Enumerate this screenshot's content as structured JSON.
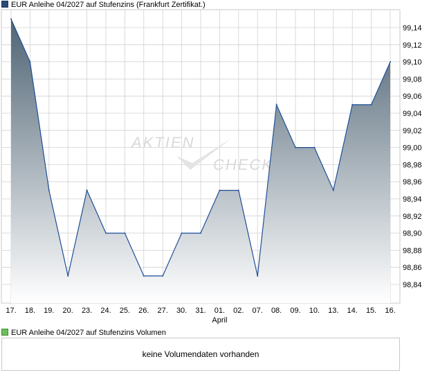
{
  "price_legend": {
    "label": "EUR Anleihe 04/2027 auf Stufenzins (Frankfurt Zertifikat.)"
  },
  "volume_legend": {
    "label": "EUR Anleihe 04/2027 auf Stufenzins Volumen"
  },
  "volume_panel": {
    "message": "keine Volumendaten vorhanden"
  },
  "watermark": {
    "word1": "AKTIEN",
    "word2": "CHECK"
  },
  "colors": {
    "line": "#1f4e99",
    "fill_top": "#4f6474",
    "fill_bottom": "#ffffff",
    "grid": "#d0d0d0",
    "volume_swatch": "#6bbf59",
    "price_swatch": "#2a4a7a"
  },
  "chart_data": {
    "type": "area",
    "title": "EUR Anleihe 04/2027 auf Stufenzins (Frankfurt Zertifikat.)",
    "x": [
      "17.",
      "18.",
      "19.",
      "20.",
      "23.",
      "24.",
      "25.",
      "26.",
      "27.",
      "30.",
      "31.",
      "01.",
      "02.",
      "07.",
      "08.",
      "09.",
      "10.",
      "13.",
      "14.",
      "15.",
      "16."
    ],
    "x_month_label": {
      "at": "01.",
      "text": "April"
    },
    "series": [
      {
        "name": "EUR Anleihe 04/2027 auf Stufenzins",
        "values": [
          99.15,
          99.1,
          98.95,
          98.85,
          98.95,
          98.9,
          98.9,
          98.85,
          98.85,
          98.9,
          98.9,
          98.95,
          98.95,
          98.85,
          99.05,
          99.0,
          99.0,
          98.95,
          99.05,
          99.05,
          99.1
        ]
      }
    ],
    "y_ticks": [
      "98,84",
      "98,86",
      "98,88",
      "98,90",
      "98,92",
      "98,94",
      "98,96",
      "98,98",
      "99,00",
      "99,02",
      "99,04",
      "99,06",
      "99,08",
      "99,10",
      "99,12",
      "99,14"
    ],
    "ylim": [
      98.82,
      99.16
    ],
    "grid": true,
    "y_axis_position": "right"
  }
}
